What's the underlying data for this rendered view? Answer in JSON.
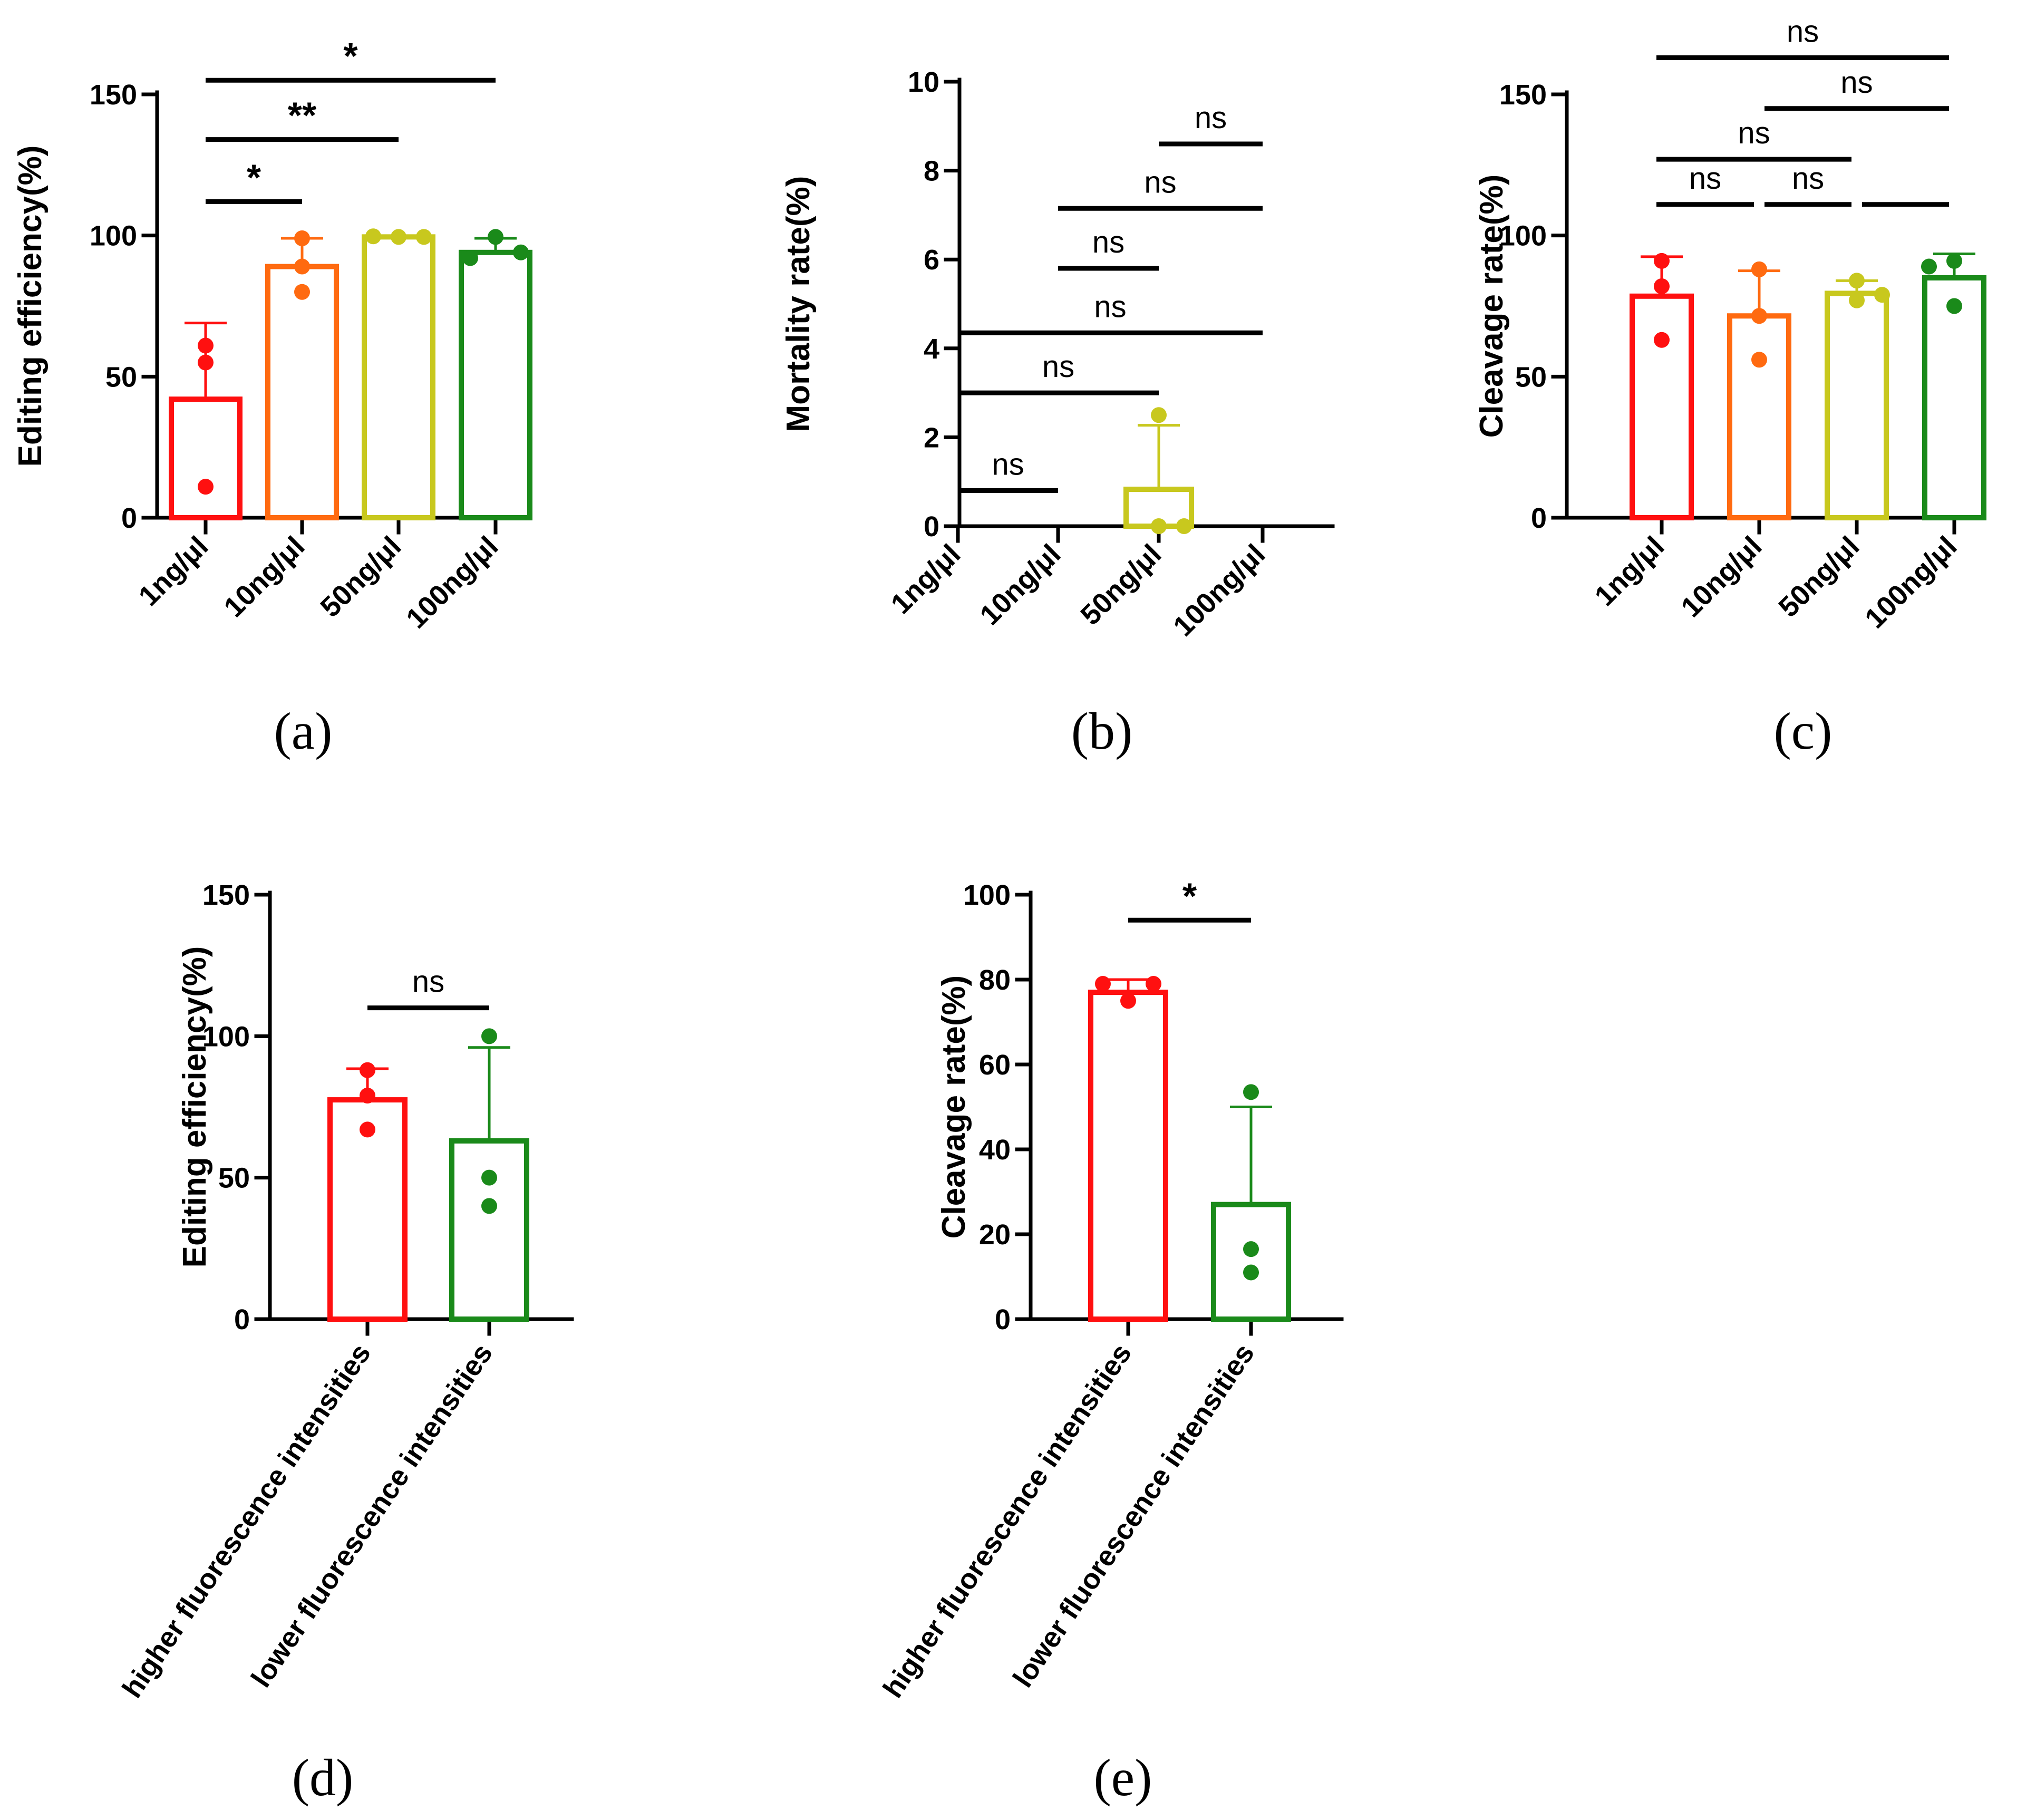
{
  "colors": {
    "red": "#ff1010",
    "orange": "#ff6a10",
    "yellow": "#c8c81e",
    "green": "#1a8a1a"
  },
  "chart_data": [
    {
      "id": "a",
      "type": "bar",
      "panel_label": "(a)",
      "ylabel": "Editing efficiency(%)",
      "ylim": [
        0,
        150
      ],
      "yticks": [
        0,
        50,
        100,
        150
      ],
      "categories": [
        "1ng/μl",
        "10ng/μl",
        "50ng/μl",
        "100ng/μl"
      ],
      "colors": [
        "#ff1010",
        "#ff6a10",
        "#c8c81e",
        "#1a8a1a"
      ],
      "values": [
        42,
        89,
        99.5,
        94
      ],
      "error": [
        27,
        10,
        0,
        5
      ],
      "points": [
        [
          61,
          55,
          11
        ],
        [
          99,
          89,
          80
        ],
        [
          99.7,
          99.5,
          99.5
        ],
        [
          92,
          99.5,
          94
        ]
      ],
      "significance": [
        {
          "from": 0,
          "to": 1,
          "label": "*",
          "y": 112
        },
        {
          "from": 0,
          "to": 2,
          "label": "**",
          "y": 134
        },
        {
          "from": 0,
          "to": 3,
          "label": "*",
          "y": 155
        }
      ]
    },
    {
      "id": "b",
      "type": "bar",
      "panel_label": "(b)",
      "ylabel": "Mortality rate(%)",
      "ylim": [
        0,
        10
      ],
      "yticks": [
        0,
        2,
        4,
        6,
        8,
        10
      ],
      "categories": [
        "1ng/μl",
        "10ng/μl",
        "50ng/μl",
        "100ng/μl"
      ],
      "colors": [
        "#ff1010",
        "#ff6a10",
        "#c8c81e",
        "#1a8a1a"
      ],
      "values": [
        0,
        0,
        0.83,
        0
      ],
      "error": [
        0,
        0,
        1.44,
        0
      ],
      "points": [
        [],
        [],
        [
          2.5,
          0,
          0
        ],
        []
      ],
      "significance": [
        {
          "from": 0,
          "to": 1,
          "label": "ns",
          "y": 0.8
        },
        {
          "from": 0,
          "to": 2,
          "label": "ns",
          "y": 3.0
        },
        {
          "from": 0,
          "to": 3,
          "label": "ns",
          "y": 4.35
        },
        {
          "from": 1,
          "to": 2,
          "label": "ns",
          "y": 5.8
        },
        {
          "from": 1,
          "to": 3,
          "label": "ns",
          "y": 7.15
        },
        {
          "from": 2,
          "to": 3,
          "label": "ns",
          "y": 8.6
        }
      ]
    },
    {
      "id": "c",
      "type": "bar",
      "panel_label": "(c)",
      "ylabel": "Cleavage rate(%)",
      "ylim": [
        0,
        150
      ],
      "yticks": [
        0,
        50,
        100,
        150
      ],
      "categories": [
        "1ng/μl",
        "10ng/μl",
        "50ng/μl",
        "100ng/μl"
      ],
      "colors": [
        "#ff1010",
        "#ff6a10",
        "#c8c81e",
        "#1a8a1a"
      ],
      "values": [
        78.5,
        71.5,
        79.5,
        85
      ],
      "error": [
        14,
        16,
        4.5,
        8.5
      ],
      "points": [
        [
          91,
          82,
          63
        ],
        [
          88,
          71.5,
          56
        ],
        [
          84,
          77,
          79
        ],
        [
          89,
          91,
          75
        ]
      ],
      "significance": [
        {
          "from": 0,
          "to": 1,
          "label": "ns",
          "y": 111
        },
        {
          "from": 1,
          "to": 2,
          "label": "ns",
          "y": 111
        },
        {
          "from": 2,
          "to": 3,
          "label": "",
          "y": 111
        },
        {
          "from": 0,
          "to": 2,
          "label": "ns",
          "y": 127
        },
        {
          "from": 1,
          "to": 3,
          "label": "ns",
          "y": 145
        },
        {
          "from": 0,
          "to": 3,
          "label": "ns",
          "y": 163
        }
      ]
    },
    {
      "id": "d",
      "type": "bar",
      "panel_label": "(d)",
      "ylabel": "Editing efficiency(%)",
      "ylim": [
        0,
        150
      ],
      "yticks": [
        0,
        50,
        100,
        150
      ],
      "categories": [
        "higher fluorescence intensities",
        "lower fluorescence intensities"
      ],
      "colors": [
        "#ff1010",
        "#1a8a1a"
      ],
      "values": [
        77.5,
        63
      ],
      "error": [
        11,
        33
      ],
      "points": [
        [
          88,
          79,
          67
        ],
        [
          100,
          50,
          40
        ]
      ],
      "significance": [
        {
          "from": 0,
          "to": 1,
          "label": "ns",
          "y": 110
        }
      ]
    },
    {
      "id": "e",
      "type": "bar",
      "panel_label": "(e)",
      "ylabel": "Cleavage rate(%)",
      "ylim": [
        0,
        100
      ],
      "yticks": [
        0,
        20,
        40,
        60,
        80,
        100
      ],
      "categories": [
        "higher fluorescence intensities",
        "lower fluorescence intensities"
      ],
      "colors": [
        "#ff1010",
        "#1a8a1a"
      ],
      "values": [
        77,
        27
      ],
      "error": [
        3,
        23
      ],
      "points": [
        [
          79,
          75,
          79
        ],
        [
          53.5,
          16.5,
          11
        ]
      ],
      "significance": [
        {
          "from": 0,
          "to": 1,
          "label": "*",
          "y": 94
        }
      ]
    }
  ]
}
